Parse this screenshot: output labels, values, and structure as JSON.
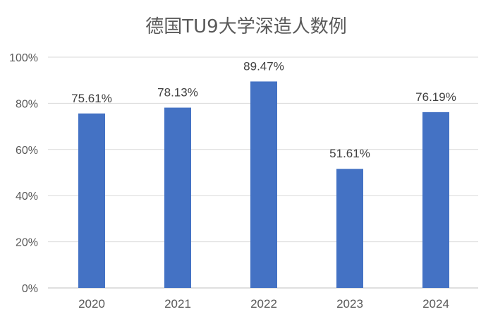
{
  "chart_data": {
    "type": "bar",
    "title": "德国TU9大学深造人数例",
    "xlabel": "",
    "ylabel": "",
    "categories": [
      "2020",
      "2021",
      "2022",
      "2023",
      "2024"
    ],
    "values": [
      75.61,
      78.13,
      89.47,
      51.61,
      76.19
    ],
    "data_labels": [
      "75.61%",
      "78.13%",
      "89.47%",
      "51.61%",
      "76.19%"
    ],
    "ylim": [
      0,
      100
    ],
    "yticks": [
      0,
      20,
      40,
      60,
      80,
      100
    ],
    "ytick_labels": [
      "0%",
      "20%",
      "40%",
      "60%",
      "80%",
      "100%"
    ],
    "grid": true,
    "legend": "none",
    "bar_color": "#4472C4"
  }
}
